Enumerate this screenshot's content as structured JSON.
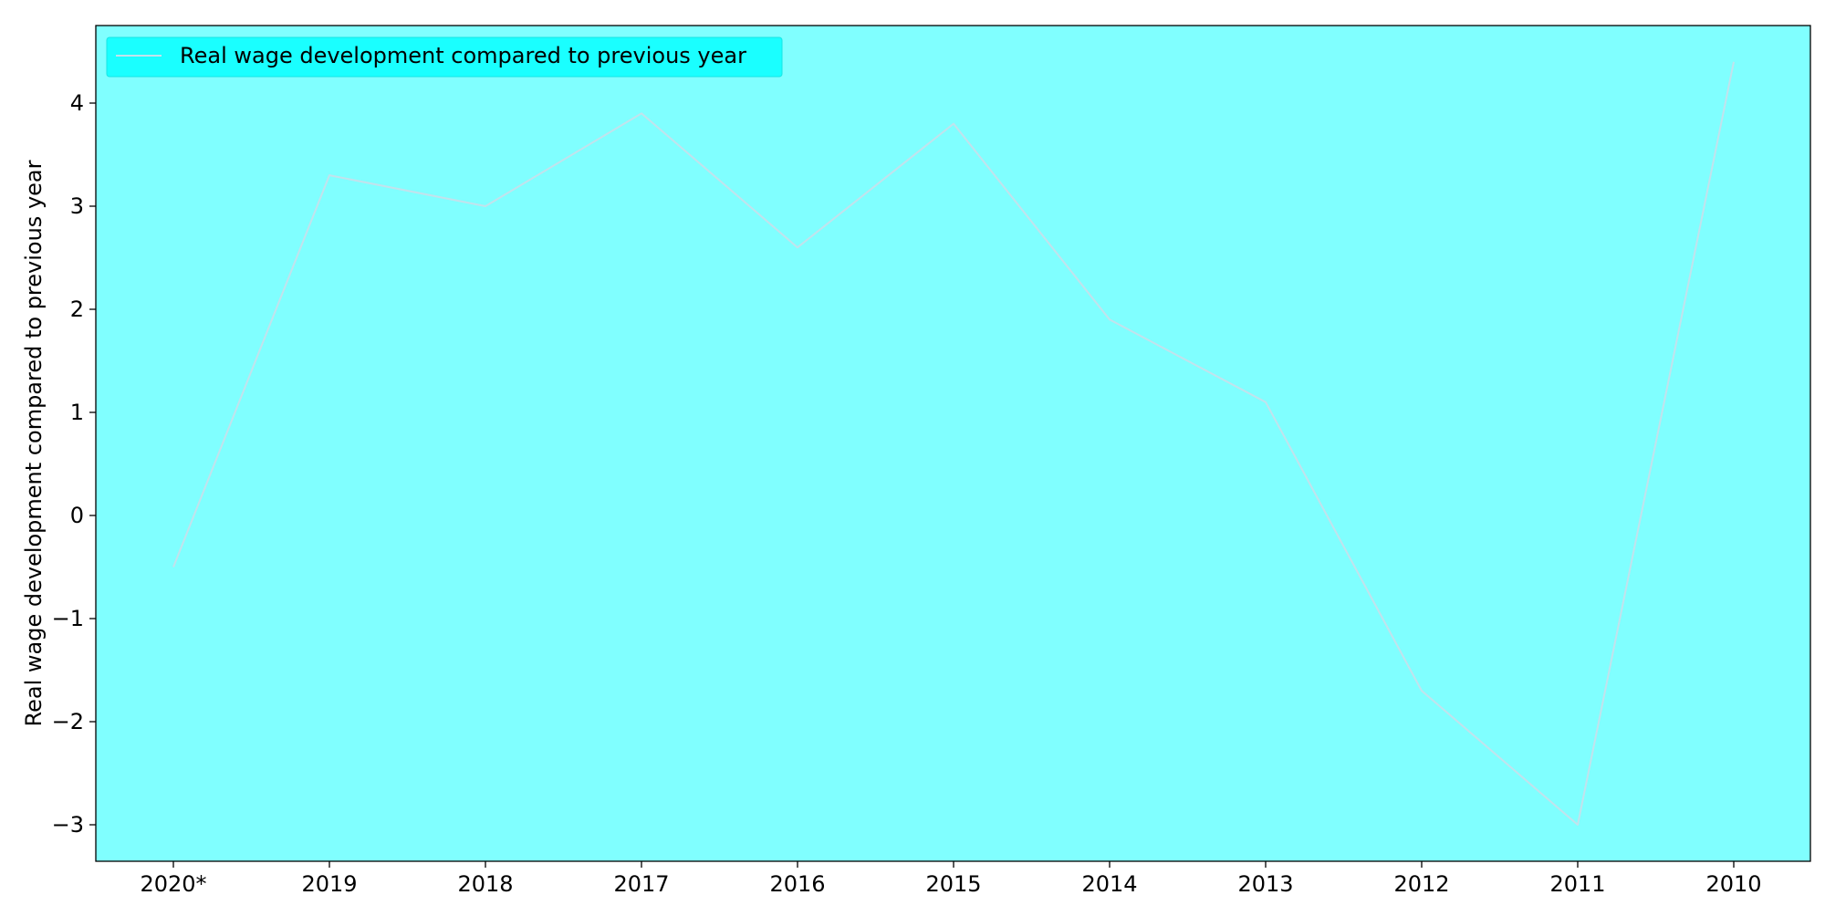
{
  "chart_data": {
    "type": "line",
    "title": "",
    "xlabel": "",
    "ylabel": "Real wage development compared to previous year",
    "categories": [
      "2020*",
      "2019",
      "2018",
      "2017",
      "2016",
      "2015",
      "2014",
      "2013",
      "2012",
      "2011",
      "2010"
    ],
    "series": [
      {
        "name": "Real wage development compared to previous year",
        "values": [
          -0.5,
          3.3,
          3.0,
          3.9,
          2.6,
          3.8,
          1.9,
          1.1,
          -1.7,
          -3.0,
          4.4
        ]
      }
    ],
    "ylim": [
      -3.37,
      4.77
    ],
    "yticks": [
      -3,
      -2,
      -1,
      0,
      1,
      2,
      3,
      4
    ],
    "ytick_labels": [
      "−3",
      "−2",
      "−1",
      "0",
      "1",
      "2",
      "3",
      "4"
    ],
    "grid": false,
    "legend_position": "top-left",
    "colors": {
      "plot_background": "#80ffff",
      "legend_background": "#1affff",
      "line": "#c2e2ec",
      "axis": "#000000"
    }
  }
}
